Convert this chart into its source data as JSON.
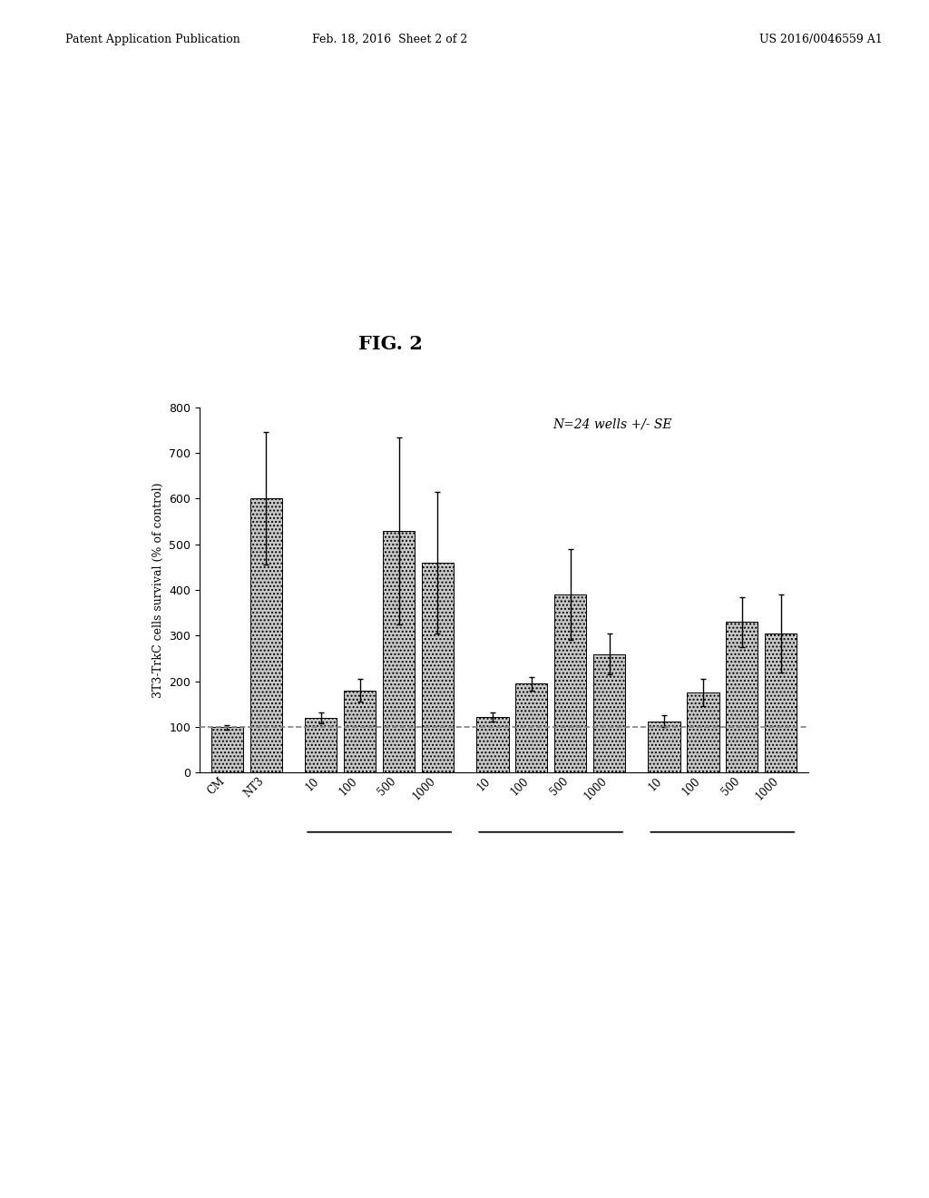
{
  "title": "FIG. 2",
  "ylabel": "3T3-TrkC cells survival (% of control)",
  "annotation": "N=24 wells +/- SE",
  "dashed_line_y": 100,
  "ylim": [
    0,
    800
  ],
  "yticks": [
    0,
    100,
    200,
    300,
    400,
    500,
    600,
    700,
    800
  ],
  "bar_labels": [
    "CM",
    "NT3",
    "10",
    "100",
    "500",
    "1000",
    "10",
    "100",
    "500",
    "1000",
    "10",
    "100",
    "500",
    "1000"
  ],
  "bar_values": [
    100,
    600,
    120,
    180,
    530,
    460,
    122,
    195,
    390,
    260,
    113,
    175,
    330,
    305
  ],
  "bar_errors": [
    5,
    145,
    12,
    25,
    205,
    155,
    10,
    15,
    100,
    45,
    12,
    30,
    55,
    85
  ],
  "bar_color": "#c8c8c8",
  "bar_hatch": "....",
  "background_color": "#ffffff",
  "header_left": "Patent Application Publication",
  "header_center": "Feb. 18, 2016  Sheet 2 of 2",
  "header_right": "US 2016/0046559 A1",
  "group_ranges": [
    [
      2,
      5
    ],
    [
      6,
      9
    ],
    [
      10,
      13
    ]
  ]
}
